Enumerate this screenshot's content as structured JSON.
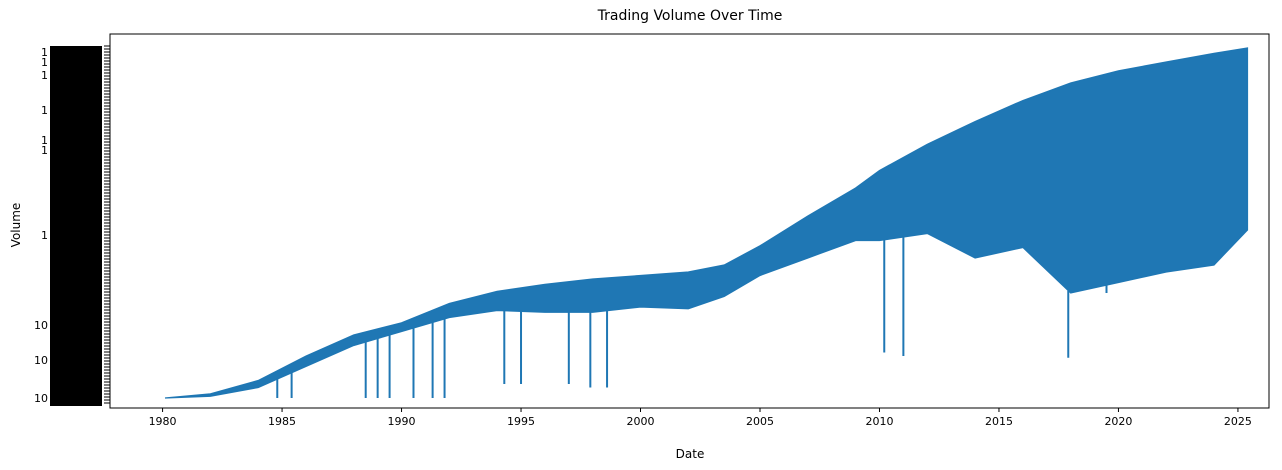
{
  "chart_data": {
    "type": "line",
    "title": "Trading Volume Over Time",
    "xlabel": "Date",
    "ylabel": "Volume",
    "xlim": [
      1977.8,
      2026.3
    ],
    "x_ticks": [
      1980,
      1985,
      1990,
      1995,
      2000,
      2005,
      2010,
      2015,
      2020,
      2025
    ],
    "x_tick_labels": [
      "1980",
      "1985",
      "1990",
      "1995",
      "2000",
      "2005",
      "2010",
      "2015",
      "2020",
      "2025"
    ],
    "y_axis": "categorical",
    "y_tick_labels_legible": [
      "1",
      "1",
      "1",
      "1",
      "1",
      "1",
      "1",
      "10",
      "10",
      "10"
    ],
    "grid": false,
    "legend": "none",
    "series": [
      {
        "color": "#1f77b4",
        "x_range": [
          1980.1,
          2025.4
        ],
        "upper_envelope": [
          [
            1980.1,
            0.0
          ],
          [
            1982.0,
            0.012
          ],
          [
            1984.0,
            0.05
          ],
          [
            1986.0,
            0.12
          ],
          [
            1988.0,
            0.18
          ],
          [
            1990.0,
            0.215
          ],
          [
            1992.0,
            0.27
          ],
          [
            1994.0,
            0.305
          ],
          [
            1996.0,
            0.325
          ],
          [
            1998.0,
            0.34
          ],
          [
            2000.0,
            0.35
          ],
          [
            2002.0,
            0.36
          ],
          [
            2003.5,
            0.38
          ],
          [
            2005.0,
            0.435
          ],
          [
            2007.0,
            0.52
          ],
          [
            2009.0,
            0.6
          ],
          [
            2010.0,
            0.65
          ],
          [
            2012.0,
            0.725
          ],
          [
            2014.0,
            0.79
          ],
          [
            2016.0,
            0.85
          ],
          [
            2018.0,
            0.9
          ],
          [
            2020.0,
            0.935
          ],
          [
            2022.0,
            0.96
          ],
          [
            2024.0,
            0.985
          ],
          [
            2025.4,
            1.0
          ]
        ],
        "lower_envelope": [
          [
            1980.1,
            0.0
          ],
          [
            1982.0,
            0.005
          ],
          [
            1984.0,
            0.03
          ],
          [
            1986.0,
            0.09
          ],
          [
            1988.0,
            0.15
          ],
          [
            1990.0,
            0.19
          ],
          [
            1992.0,
            0.23
          ],
          [
            1994.0,
            0.25
          ],
          [
            1996.0,
            0.245
          ],
          [
            1998.0,
            0.245
          ],
          [
            2000.0,
            0.26
          ],
          [
            2002.0,
            0.255
          ],
          [
            2003.5,
            0.29
          ],
          [
            2005.0,
            0.35
          ],
          [
            2007.0,
            0.4
          ],
          [
            2009.0,
            0.45
          ],
          [
            2010.0,
            0.45
          ],
          [
            2012.0,
            0.47
          ],
          [
            2014.0,
            0.4
          ],
          [
            2016.0,
            0.43
          ],
          [
            2018.0,
            0.3
          ],
          [
            2020.0,
            0.33
          ],
          [
            2022.0,
            0.36
          ],
          [
            2024.0,
            0.38
          ],
          [
            2025.4,
            0.48
          ]
        ],
        "dips": [
          [
            1984.8,
            0.0
          ],
          [
            1985.4,
            0.0
          ],
          [
            1988.5,
            0.0
          ],
          [
            1989.0,
            0.0
          ],
          [
            1989.5,
            0.0
          ],
          [
            1990.5,
            0.0
          ],
          [
            1991.3,
            0.0
          ],
          [
            1991.8,
            0.0
          ],
          [
            1994.3,
            0.04
          ],
          [
            1995.0,
            0.04
          ],
          [
            1997.0,
            0.04
          ],
          [
            1997.9,
            0.03
          ],
          [
            1998.6,
            0.03
          ],
          [
            2010.2,
            0.13
          ],
          [
            2011.0,
            0.12
          ],
          [
            2017.9,
            0.115
          ],
          [
            2019.5,
            0.3
          ]
        ]
      }
    ]
  }
}
